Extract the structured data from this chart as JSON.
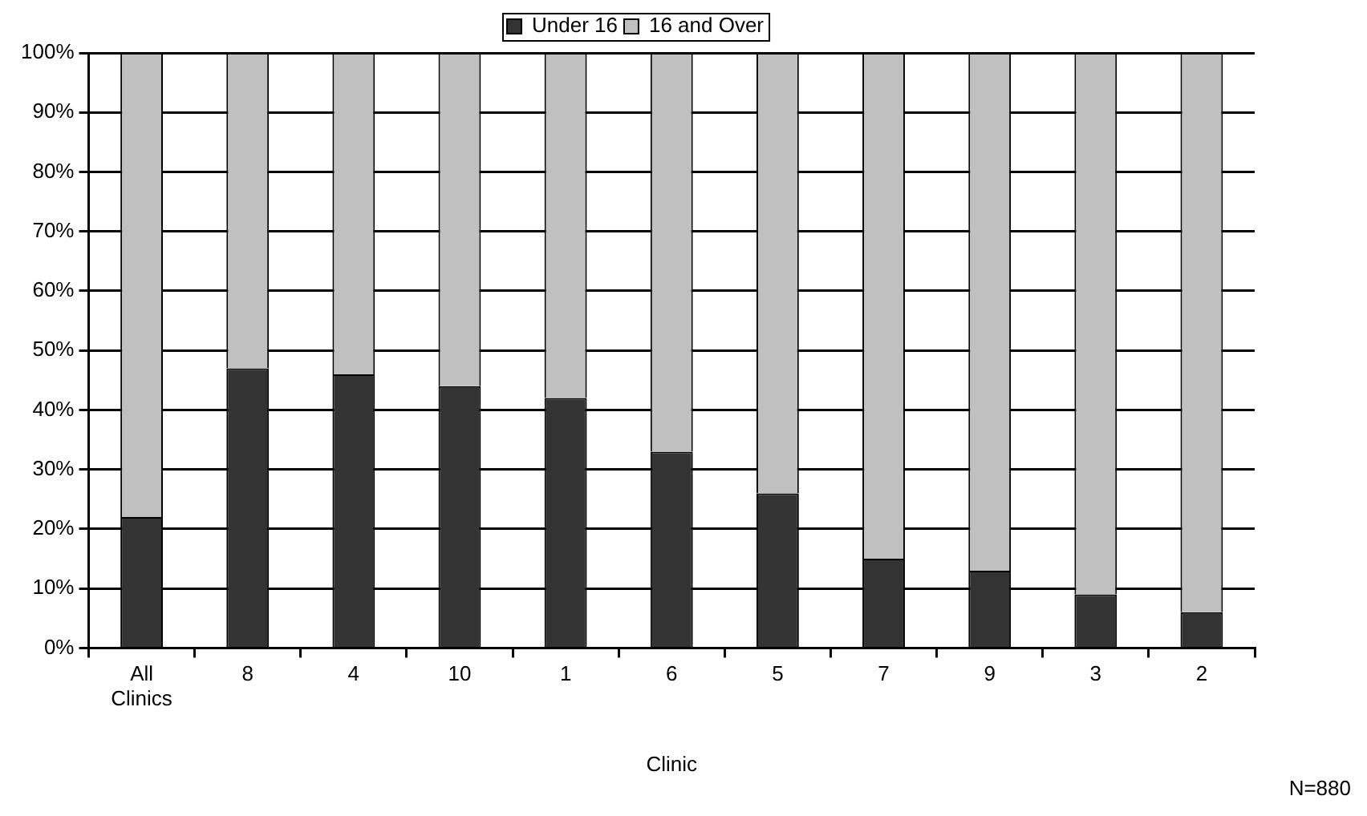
{
  "chart_data": {
    "type": "bar",
    "stacked": true,
    "xlabel": "Clinic",
    "categories": [
      "All Clinics",
      "8",
      "4",
      "10",
      "1",
      "6",
      "5",
      "7",
      "9",
      "3",
      "2"
    ],
    "series": [
      {
        "name": "Under 16",
        "color": "#333333",
        "values": [
          22,
          47,
          46,
          44,
          42,
          33,
          26,
          15,
          13,
          9,
          6
        ]
      },
      {
        "name": "16 and Over",
        "color": "#c0c0c0",
        "values": [
          78,
          53,
          54,
          56,
          58,
          67,
          74,
          85,
          87,
          91,
          94
        ]
      }
    ],
    "ylim": [
      0,
      100
    ],
    "yticks": [
      {
        "value": 0,
        "label": "0%"
      },
      {
        "value": 10,
        "label": "10%"
      },
      {
        "value": 20,
        "label": "20%"
      },
      {
        "value": 30,
        "label": "30%"
      },
      {
        "value": 40,
        "label": "40%"
      },
      {
        "value": 50,
        "label": "50%"
      },
      {
        "value": 60,
        "label": "60%"
      },
      {
        "value": 70,
        "label": "70%"
      },
      {
        "value": 80,
        "label": "80%"
      },
      {
        "value": 90,
        "label": "90%"
      },
      {
        "value": 100,
        "label": "100%"
      }
    ],
    "grid": "y",
    "legend": "top",
    "annotations": [
      "N=880"
    ]
  }
}
